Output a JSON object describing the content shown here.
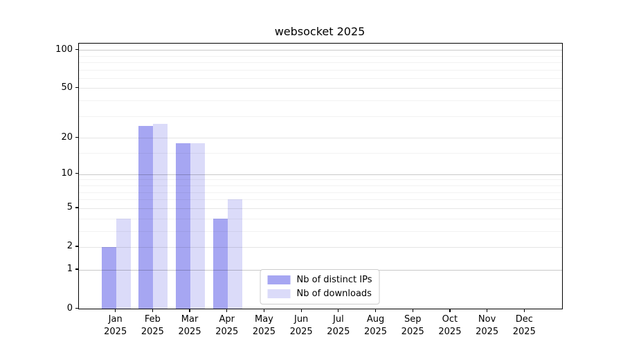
{
  "chart_data": {
    "type": "bar",
    "title": "websocket 2025",
    "categories": [
      "Jan",
      "Feb",
      "Mar",
      "Apr",
      "May",
      "Jun",
      "Jul",
      "Aug",
      "Sep",
      "Oct",
      "Nov",
      "Dec"
    ],
    "year": "2025",
    "series": [
      {
        "name": "Nb of distinct IPs",
        "color": "#a6a6f2",
        "values": [
          2,
          25,
          18,
          4,
          0,
          0,
          0,
          0,
          0,
          0,
          0,
          0
        ]
      },
      {
        "name": "Nb of downloads",
        "color": "#dbdbf9",
        "values": [
          4,
          26,
          18,
          6,
          0,
          0,
          0,
          0,
          0,
          0,
          0,
          0
        ]
      }
    ],
    "yscale": "log1p",
    "yticks": [
      0,
      1,
      2,
      5,
      10,
      20,
      50,
      100
    ],
    "major_gridline_values": [
      1,
      10,
      100
    ],
    "mid_gridline_values": [
      2,
      5,
      20,
      50
    ],
    "minor_gridline_values": [
      3,
      4,
      6,
      7,
      8,
      9,
      15,
      30,
      40,
      60,
      70,
      80,
      90
    ],
    "ylim": [
      0,
      112
    ],
    "grid": true,
    "legend_position": "lower center",
    "colors": {
      "spine": "#000000",
      "grid_major": "#c9c9c9",
      "grid_minor": "#f2f2f2"
    }
  }
}
